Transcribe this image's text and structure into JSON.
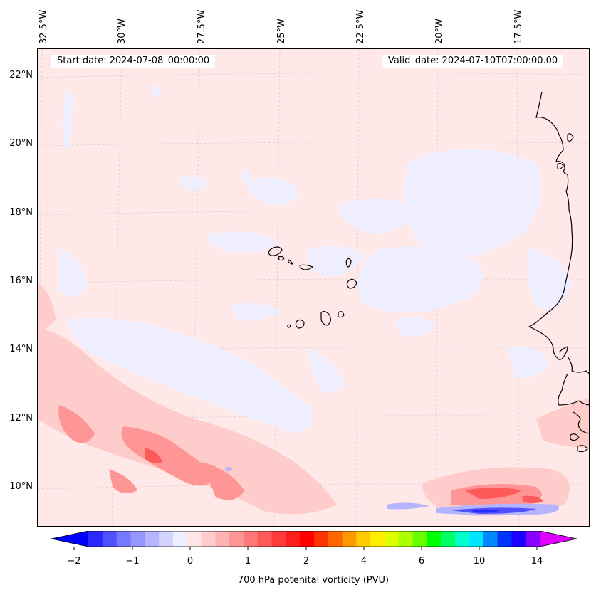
{
  "map": {
    "start_date": "Start date: 2024-07-08_00:00:00",
    "valid_date": "Valid_date: 2024-07-10T07:00:00.00",
    "longitude_labels": [
      "32.5°W",
      "30°W",
      "27.5°W",
      "25°W",
      "22.5°W",
      "20°W",
      "17.5°W"
    ],
    "latitude_labels": [
      "22°N",
      "20°N",
      "18°N",
      "16°N",
      "14°N",
      "12°N",
      "10°N"
    ],
    "background_color": "#ffe8e8",
    "coastline_color": "#000000",
    "gridlines": true
  },
  "colorbar": {
    "title": "700 hPa potenital vorticity (PVU)",
    "tick_labels": [
      "−2",
      "−1",
      "0",
      "1",
      "2",
      "4",
      "6",
      "10",
      "14"
    ],
    "colors": [
      "#0000ff",
      "#2a2aff",
      "#5050ff",
      "#7878ff",
      "#9696ff",
      "#b4b4ff",
      "#d2d2ff",
      "#eeeeff",
      "#ffe6e6",
      "#ffcccc",
      "#ffb2b2",
      "#ff9696",
      "#ff7878",
      "#ff5a5a",
      "#ff3c3c",
      "#ff1e1e",
      "#ff0000",
      "#ff3300",
      "#ff6600",
      "#ff9900",
      "#ffcc00",
      "#ffee00",
      "#ddff00",
      "#aaff00",
      "#66ff00",
      "#00ff00",
      "#00ff66",
      "#00ffcc",
      "#00e5ff",
      "#0088ff",
      "#0033ff",
      "#1a00ff",
      "#8800ff",
      "#dd00ff"
    ]
  }
}
